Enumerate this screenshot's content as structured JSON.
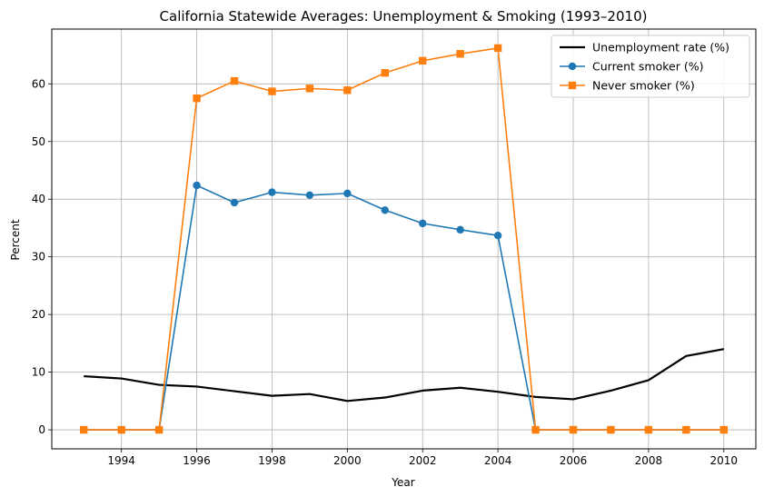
{
  "chart_data": {
    "type": "line",
    "title": "California Statewide Averages: Unemployment & Smoking (1993–2010)",
    "xlabel": "Year",
    "ylabel": "Percent",
    "x": [
      1993,
      1994,
      1995,
      1996,
      1997,
      1998,
      1999,
      2000,
      2001,
      2002,
      2003,
      2004,
      2005,
      2006,
      2007,
      2008,
      2009,
      2010
    ],
    "xlim": [
      1992.15,
      2010.85
    ],
    "ylim": [
      -3.3,
      69.5
    ],
    "xticks": [
      1994,
      1996,
      1998,
      2000,
      2002,
      2004,
      2006,
      2008,
      2010
    ],
    "xtick_labels": [
      "1994",
      "1996",
      "1998",
      "2000",
      "2002",
      "2004",
      "2006",
      "2008",
      "2010"
    ],
    "yticks": [
      0,
      10,
      20,
      30,
      40,
      50,
      60
    ],
    "ytick_labels": [
      "0",
      "10",
      "20",
      "30",
      "40",
      "50",
      "60"
    ],
    "grid": true,
    "legend_position": "top-right",
    "series": [
      {
        "name": "Unemployment rate (%)",
        "color": "#000000",
        "marker": "none",
        "values": [
          9.3,
          8.9,
          7.8,
          7.5,
          6.7,
          5.9,
          6.2,
          5.0,
          5.6,
          6.8,
          7.3,
          6.6,
          5.7,
          5.3,
          6.8,
          8.6,
          12.8,
          14.0
        ]
      },
      {
        "name": "Current smoker (%)",
        "color": "#1f77b4",
        "marker": "circle",
        "values": [
          0,
          0,
          0,
          42.4,
          39.4,
          41.2,
          40.7,
          41.0,
          38.1,
          35.8,
          34.7,
          33.7,
          0,
          0,
          0,
          0,
          0,
          0
        ]
      },
      {
        "name": "Never smoker (%)",
        "color": "#ff7f0e",
        "marker": "square",
        "values": [
          0,
          0,
          0,
          57.5,
          60.5,
          58.7,
          59.2,
          58.9,
          61.9,
          64.0,
          65.2,
          66.2,
          0,
          0,
          0,
          0,
          0,
          0
        ]
      }
    ]
  }
}
